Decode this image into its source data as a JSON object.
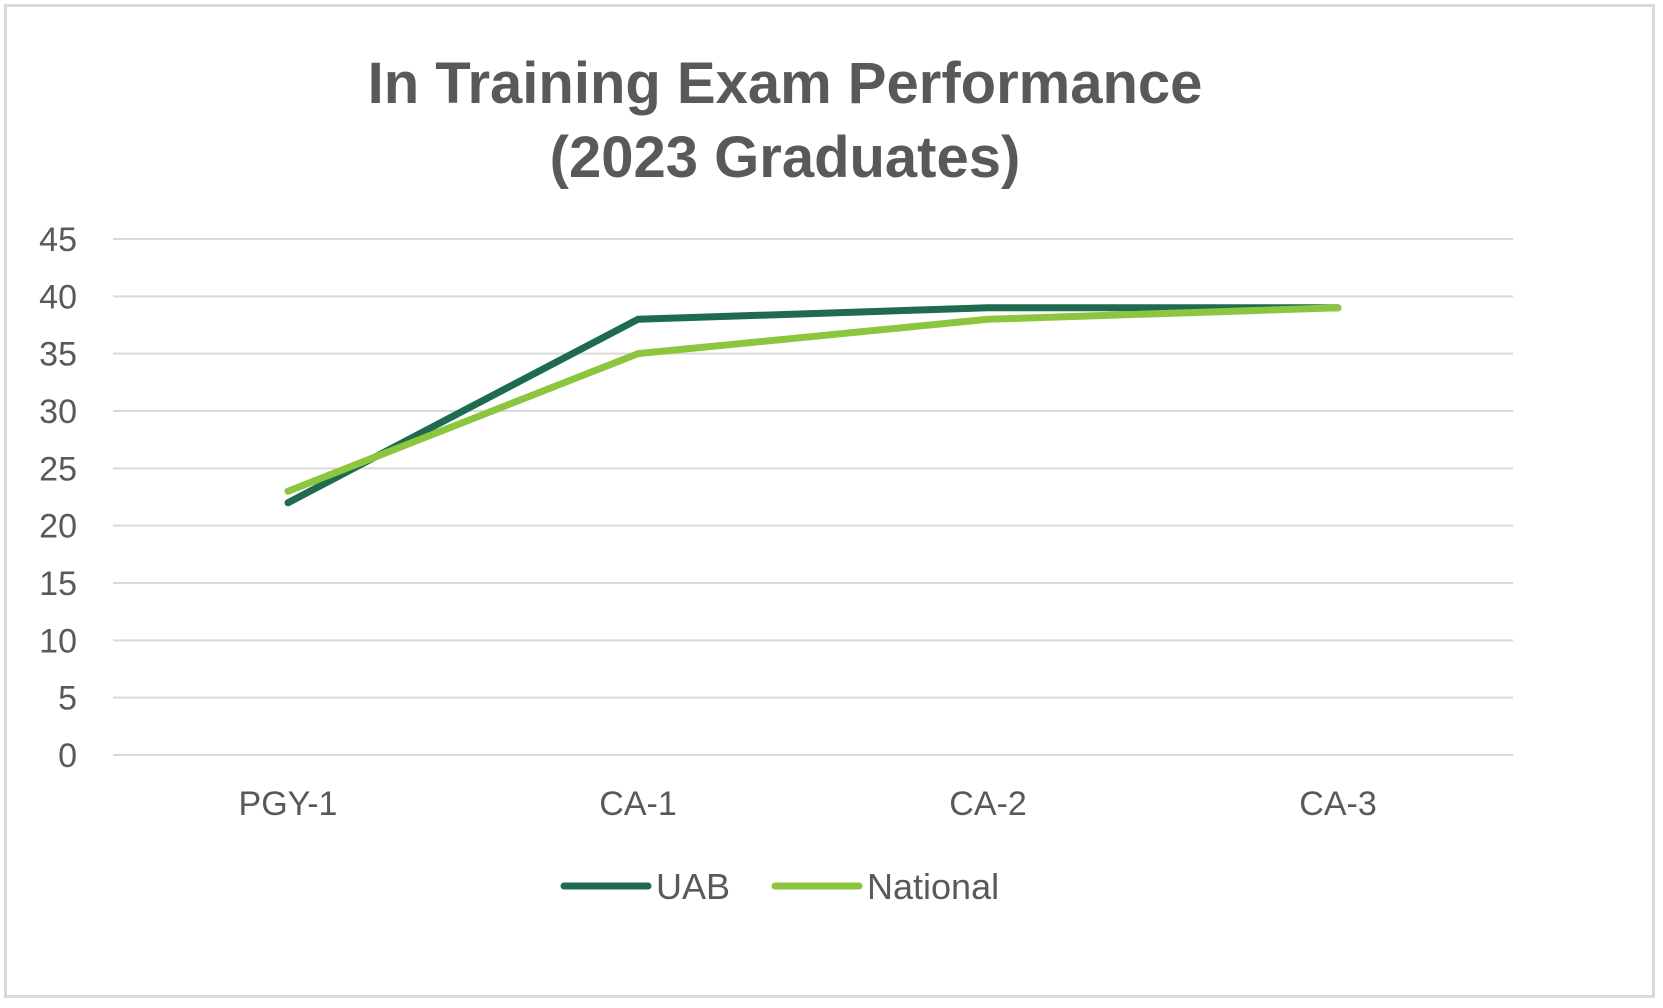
{
  "chart_data": {
    "type": "line",
    "title": "In Training Exam Performance\n(2023 Graduates)",
    "title_lines": [
      "In Training Exam Performance",
      "(2023 Graduates)"
    ],
    "categories": [
      "PGY-1",
      "CA-1",
      "CA-2",
      "CA-3"
    ],
    "series": [
      {
        "name": "UAB",
        "color": "#1e6b4f",
        "values": [
          22,
          38,
          39,
          39
        ]
      },
      {
        "name": "National",
        "color": "#8cc63f",
        "values": [
          23,
          35,
          38,
          39
        ]
      }
    ],
    "ylim": [
      0,
      45
    ],
    "yticks": [
      "0",
      "5",
      "10",
      "15",
      "20",
      "25",
      "30",
      "35",
      "40",
      "45"
    ],
    "xlabel": "",
    "ylabel": "",
    "grid": true,
    "legend_position": "bottom"
  }
}
